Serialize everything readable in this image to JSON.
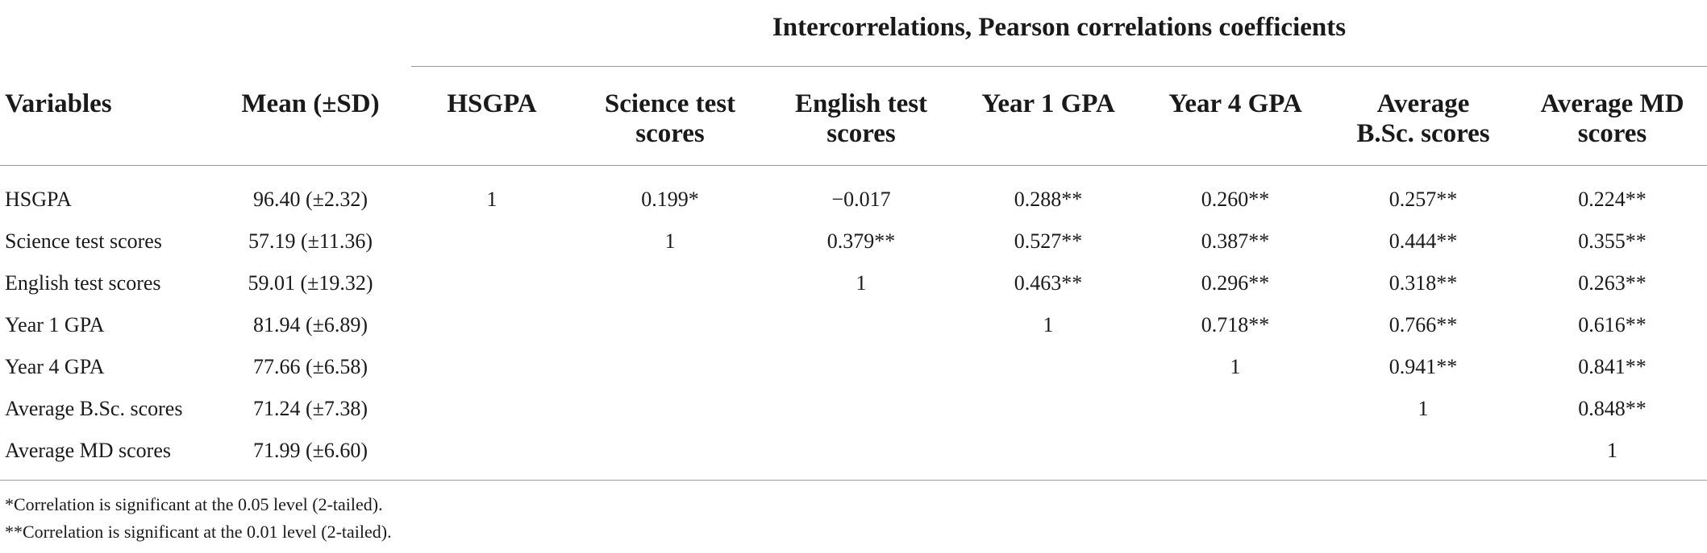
{
  "table": {
    "super_header": "Intercorrelations, Pearson correlations coefficients",
    "columns": [
      [
        "Variables"
      ],
      [
        "Mean (±SD)"
      ],
      [
        "HSGPA"
      ],
      [
        "Science test",
        "scores"
      ],
      [
        "English test",
        "scores"
      ],
      [
        "Year 1 GPA"
      ],
      [
        "Year 4 GPA"
      ],
      [
        "Average",
        "B.Sc. scores"
      ],
      [
        "Average MD",
        "scores"
      ]
    ],
    "rows": [
      {
        "variable": "HSGPA",
        "mean": "96.40 (±2.32)",
        "values": [
          "1",
          "0.199*",
          "−0.017",
          "0.288**",
          "0.260**",
          "0.257**",
          "0.224**"
        ]
      },
      {
        "variable": "Science test scores",
        "mean": "57.19 (±11.36)",
        "values": [
          "",
          "1",
          "0.379**",
          "0.527**",
          "0.387**",
          "0.444**",
          "0.355**"
        ]
      },
      {
        "variable": "English test scores",
        "mean": "59.01 (±19.32)",
        "values": [
          "",
          "",
          "1",
          "0.463**",
          "0.296**",
          "0.318**",
          "0.263**"
        ]
      },
      {
        "variable": "Year 1 GPA",
        "mean": "81.94 (±6.89)",
        "values": [
          "",
          "",
          "",
          "1",
          "0.718**",
          "0.766**",
          "0.616**"
        ]
      },
      {
        "variable": "Year 4 GPA",
        "mean": "77.66 (±6.58)",
        "values": [
          "",
          "",
          "",
          "",
          "1",
          "0.941**",
          "0.841**"
        ]
      },
      {
        "variable": "Average B.Sc. scores",
        "mean": "71.24 (±7.38)",
        "values": [
          "",
          "",
          "",
          "",
          "",
          "1",
          "0.848**"
        ]
      },
      {
        "variable": "Average MD scores",
        "mean": "71.99 (±6.60)",
        "values": [
          "",
          "",
          "",
          "",
          "",
          "",
          "1"
        ]
      }
    ]
  },
  "footnotes": [
    "*Correlation is significant at the 0.05 level (2-tailed).",
    "**Correlation is significant at the 0.01 level (2-tailed)."
  ]
}
